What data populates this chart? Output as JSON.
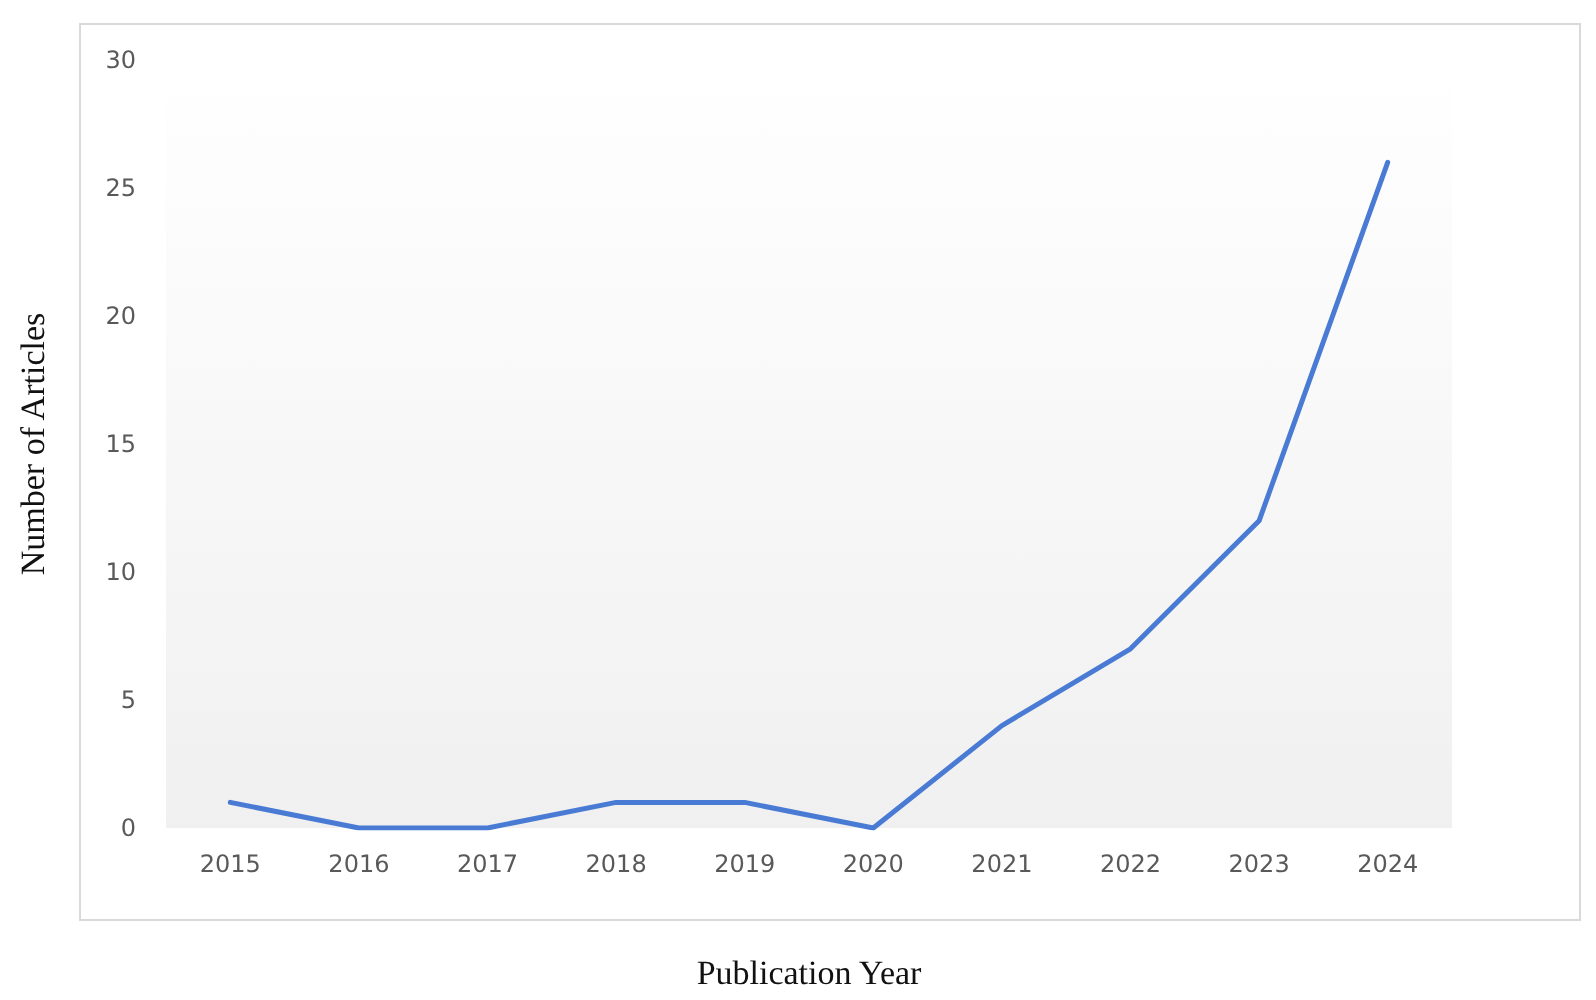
{
  "chart_data": {
    "type": "line",
    "xlabel": "Publication Year",
    "ylabel": "Number of Articles",
    "categories": [
      "2015",
      "2016",
      "2017",
      "2018",
      "2019",
      "2020",
      "2021",
      "2022",
      "2023",
      "2024"
    ],
    "series": [
      {
        "color": "#4a7bd4",
        "values": [
          1,
          0,
          0,
          1,
          1,
          0,
          4,
          7,
          12,
          26
        ]
      }
    ],
    "ylim": [
      0,
      30
    ],
    "yticks": [
      0,
      5,
      10,
      15,
      20,
      25,
      30
    ],
    "grid": false,
    "marker": "none",
    "line_style": "solid"
  }
}
